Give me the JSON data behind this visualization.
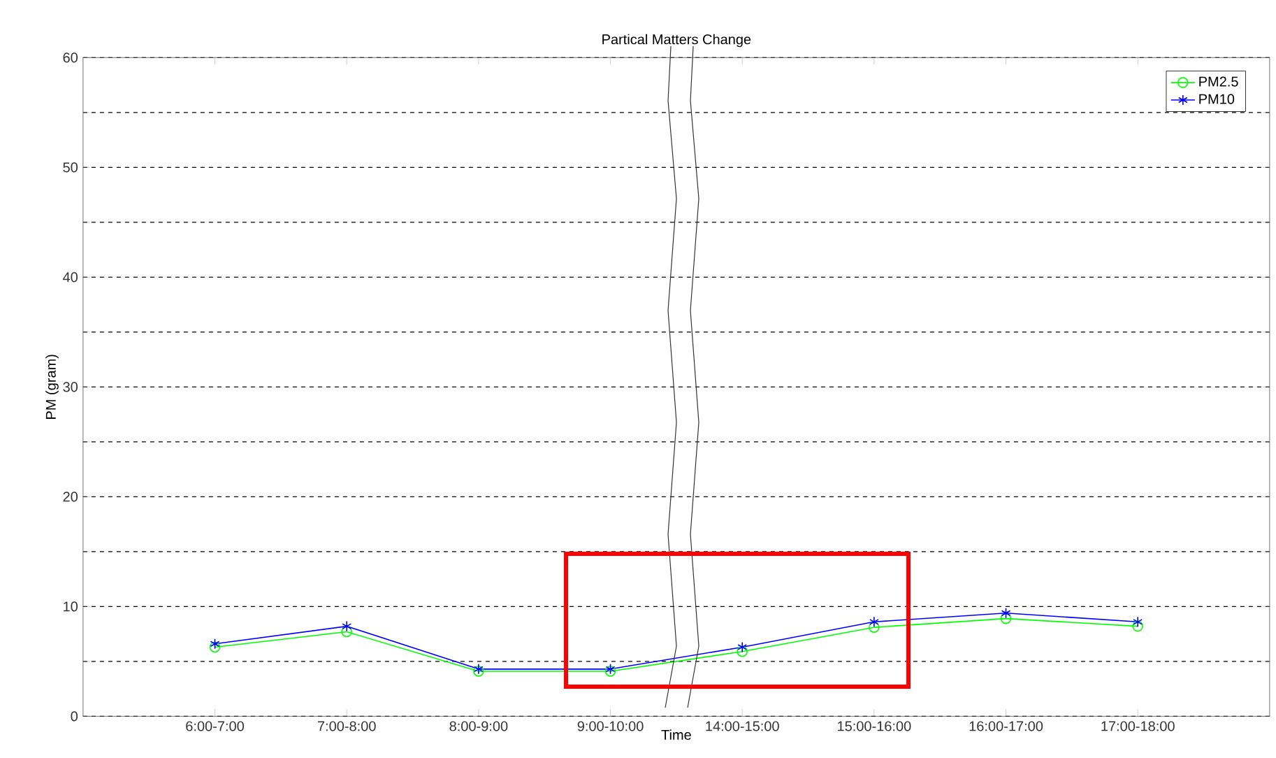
{
  "chart_data": {
    "type": "line",
    "title": "Partical Matters Change",
    "xlabel": "Time",
    "ylabel": "PM (gram)",
    "categories": [
      "6:00-7:00",
      "7:00-8:00",
      "8:00-9:00",
      "9:00-10:00",
      "14:00-15:00",
      "15:00-16:00",
      "16:00-17:00",
      "17:00-18:00"
    ],
    "series": [
      {
        "name": "PM2.5",
        "color": "#00ff00",
        "marker": "circle",
        "values": [
          6.3,
          7.7,
          4.1,
          4.1,
          5.9,
          8.1,
          8.9,
          8.2
        ]
      },
      {
        "name": "PM10",
        "color": "#0000ff",
        "marker": "cross",
        "values": [
          6.6,
          8.2,
          4.3,
          4.3,
          6.3,
          8.6,
          9.4,
          8.6
        ]
      }
    ],
    "ylim": [
      0,
      60
    ],
    "yticks": [
      0,
      {
        "value": 5,
        "label": null
      },
      10,
      {
        "value": 15,
        "label": null
      },
      20,
      {
        "value": 25,
        "label": null
      },
      30,
      {
        "value": 35,
        "label": null
      },
      40,
      {
        "value": 45,
        "label": null
      },
      50,
      {
        "value": 55,
        "label": null
      },
      60
    ],
    "grid": "y",
    "legend": "top right"
  }
}
